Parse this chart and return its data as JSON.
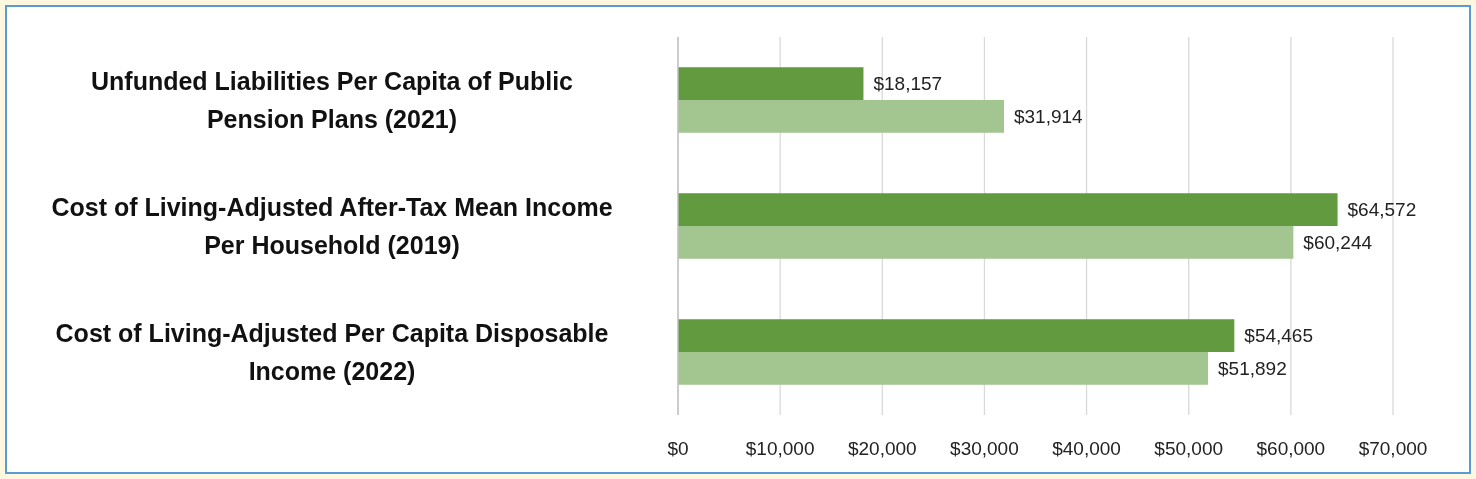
{
  "chart_data": {
    "type": "bar",
    "orientation": "horizontal",
    "categories": [
      "Unfunded Liabilities Per Capita of Public Pension Plans (2021)",
      "Cost of Living-Adjusted After-Tax Mean Income Per Household (2019)",
      "Cost of Living-Adjusted Per Capita Disposable Income (2022)"
    ],
    "series": [
      {
        "color": "#629b3f",
        "values": [
          18157,
          64572,
          54465
        ],
        "value_labels": [
          "$18,157",
          "$64,572",
          "$54,465"
        ]
      },
      {
        "color": "#a3c58f",
        "values": [
          31914,
          60244,
          51892
        ],
        "value_labels": [
          "$31,914",
          "$60,244",
          "$51,892"
        ]
      }
    ],
    "xlim": [
      0,
      70000
    ],
    "xticks": [
      {
        "value": 0,
        "label": "$0"
      },
      {
        "value": 10000,
        "label": "$10,000"
      },
      {
        "value": 20000,
        "label": "$20,000"
      },
      {
        "value": 30000,
        "label": "$30,000"
      },
      {
        "value": 40000,
        "label": "$40,000"
      },
      {
        "value": 50000,
        "label": "$50,000"
      },
      {
        "value": 60000,
        "label": "$60,000"
      },
      {
        "value": 70000,
        "label": "$70,000"
      }
    ],
    "grid": "x"
  }
}
